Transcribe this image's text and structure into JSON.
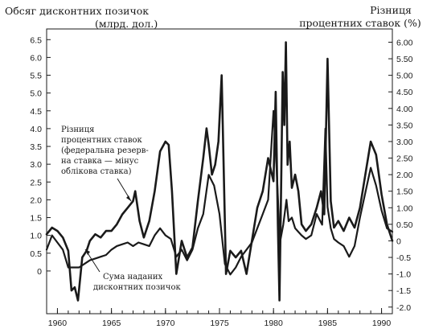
{
  "chart_data": {
    "type": "line",
    "left_axis_title": [
      "Обсяг дисконтних позичок",
      "(млрд. дол.)"
    ],
    "right_axis_title": [
      "Різниця",
      "процентних ставок (%)"
    ],
    "x_ticks": [
      1960,
      1965,
      1970,
      1975,
      1980,
      1985,
      1990
    ],
    "xlim": [
      1959,
      1991
    ],
    "left_ticks": [
      "6.5",
      "6.0",
      "5.5",
      "5.0",
      "4.5",
      "4.0",
      "3.5",
      "3.0",
      "2.5",
      "2.0",
      "1.5",
      "1.0",
      "0.5",
      "0"
    ],
    "left_tick_values": [
      6.5,
      6.0,
      5.5,
      5.0,
      4.5,
      4.0,
      3.5,
      3.0,
      2.5,
      2.0,
      1.5,
      1.0,
      0.5,
      0
    ],
    "ylim_left": [
      -1.2,
      6.8
    ],
    "right_ticks": [
      "6.00",
      "5.50",
      "5.00",
      "4.50",
      "4.00",
      "3.50",
      "3.00",
      "2.50",
      "2.00",
      "1.50",
      "1.00",
      "0.50",
      "0",
      "-0.5",
      "-1.0",
      "-1.5",
      "-2.0"
    ],
    "right_tick_values": [
      6.0,
      5.5,
      5.0,
      4.5,
      4.0,
      3.5,
      3.0,
      2.5,
      2.0,
      1.5,
      1.0,
      0.5,
      0,
      -0.5,
      -1.0,
      -1.5,
      -2.0
    ],
    "ylim_right": [
      -2.2,
      6.4
    ],
    "series": [
      {
        "name": "Сума наданих дисконтних позичок",
        "axis": "left",
        "color": "#1a1a1a",
        "x": [
          1959.0,
          1959.5,
          1960.0,
          1960.5,
          1961.0,
          1961.5,
          1962.0,
          1962.5,
          1963.0,
          1963.5,
          1964.0,
          1964.5,
          1965.0,
          1965.5,
          1966.0,
          1966.5,
          1967.0,
          1967.5,
          1968.0,
          1968.5,
          1969.0,
          1969.5,
          1970.0,
          1970.5,
          1971.0,
          1971.5,
          1972.0,
          1972.5,
          1973.0,
          1973.5,
          1974.0,
          1974.5,
          1975.0,
          1975.5,
          1976.0,
          1976.5,
          1977.0,
          1977.5,
          1978.0,
          1978.5,
          1979.0,
          1979.5,
          1980.0,
          1980.3,
          1980.6,
          1980.9,
          1981.2,
          1981.4,
          1981.7,
          1982.0,
          1982.3,
          1982.6,
          1983.0,
          1983.5,
          1984.0,
          1984.5,
          1984.8,
          1985.0,
          1985.3,
          1985.6,
          1986.0,
          1986.5,
          1987.0,
          1987.5,
          1988.0,
          1988.5,
          1989.0,
          1989.5,
          1990.0,
          1990.5,
          1991.0
        ],
        "values": [
          0.6,
          1.0,
          0.8,
          0.6,
          0.1,
          0.1,
          0.1,
          0.2,
          0.3,
          0.35,
          0.4,
          0.45,
          0.6,
          0.7,
          0.75,
          0.8,
          0.7,
          0.8,
          0.75,
          0.7,
          1.0,
          1.2,
          1.0,
          0.9,
          0.4,
          0.6,
          0.3,
          0.6,
          1.2,
          1.6,
          2.7,
          2.4,
          1.6,
          0.2,
          -0.1,
          0.1,
          0.4,
          0.6,
          0.8,
          1.2,
          1.6,
          2.0,
          4.5,
          2.8,
          0.8,
          1.3,
          2.0,
          1.4,
          1.5,
          1.2,
          1.1,
          1.0,
          0.9,
          1.0,
          1.6,
          1.3,
          4.0,
          1.8,
          1.2,
          0.9,
          0.8,
          0.7,
          0.4,
          0.7,
          1.5,
          2.2,
          2.9,
          2.4,
          1.7,
          1.2,
          1.1
        ]
      },
      {
        "name": "Різниця процентних ставок (федеральна резервна ставка — мінус облікова ставка)",
        "axis": "right",
        "color": "#1a1a1a",
        "x": [
          1959.0,
          1959.5,
          1960.0,
          1960.5,
          1961.0,
          1961.3,
          1961.6,
          1961.9,
          1962.3,
          1962.7,
          1963.0,
          1963.5,
          1964.0,
          1964.5,
          1965.0,
          1965.5,
          1966.0,
          1966.5,
          1967.0,
          1967.2,
          1967.6,
          1968.0,
          1968.5,
          1969.0,
          1969.5,
          1970.0,
          1970.3,
          1970.6,
          1971.0,
          1971.5,
          1972.0,
          1972.5,
          1973.0,
          1973.5,
          1973.8,
          1974.0,
          1974.3,
          1974.6,
          1974.9,
          1975.2,
          1975.6,
          1976.0,
          1976.5,
          1977.0,
          1977.5,
          1978.0,
          1978.5,
          1979.0,
          1979.5,
          1980.0,
          1980.2,
          1980.4,
          1980.55,
          1980.7,
          1980.85,
          1981.0,
          1981.15,
          1981.3,
          1981.5,
          1981.7,
          1982.0,
          1982.3,
          1982.6,
          1983.0,
          1983.5,
          1984.0,
          1984.4,
          1984.7,
          1985.0,
          1985.3,
          1985.6,
          1986.0,
          1986.5,
          1987.0,
          1987.5,
          1988.0,
          1988.5,
          1989.0,
          1989.5,
          1990.0,
          1990.5,
          1991.0
        ],
        "values": [
          0.2,
          0.4,
          0.3,
          0.1,
          -0.3,
          -1.5,
          -1.4,
          -1.8,
          -0.5,
          -0.3,
          0.0,
          0.2,
          0.1,
          0.3,
          0.3,
          0.5,
          0.8,
          1.0,
          1.2,
          1.5,
          0.6,
          0.1,
          0.6,
          1.5,
          2.7,
          3.0,
          2.9,
          1.5,
          -1.0,
          0.0,
          -0.5,
          -0.2,
          1.2,
          2.5,
          3.4,
          2.9,
          2.0,
          2.3,
          3.0,
          5.0,
          -1.0,
          -0.3,
          -0.5,
          -0.3,
          -1.0,
          0.0,
          1.0,
          1.5,
          2.5,
          1.8,
          4.5,
          0.5,
          -1.8,
          1.5,
          5.1,
          3.5,
          6.0,
          2.3,
          3.0,
          1.6,
          2.0,
          1.5,
          0.5,
          0.3,
          0.5,
          1.0,
          1.5,
          0.8,
          5.5,
          1.2,
          0.4,
          0.6,
          0.3,
          0.7,
          0.4,
          1.0,
          2.0,
          3.0,
          2.6,
          1.4,
          0.5,
          0.0
        ]
      }
    ],
    "annotations": [
      {
        "lines": [
          "Різниця",
          "процентних ставок",
          "(федеральна резерв-",
          "на ставка — мінус",
          "облікова ставка)"
        ]
      },
      {
        "lines": [
          "Сума наданих",
          "дисконтних позичок"
        ]
      }
    ]
  }
}
